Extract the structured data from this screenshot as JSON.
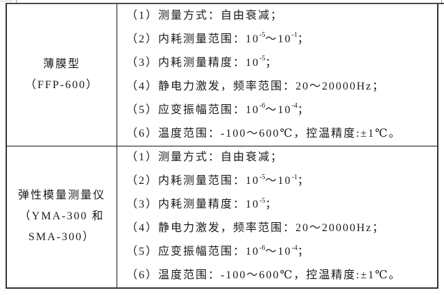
{
  "page": {
    "background": "#ffffff",
    "text_color": "#1a1a1a",
    "border_color": "#343434"
  },
  "table": {
    "rows": [
      {
        "label_lines": [
          "薄膜型",
          "（FFP-600）"
        ],
        "specs": {
          "line1": "（1）测量方式：自由衰减；",
          "line2a": "（2）内耗测量范围：10",
          "line2b": "-5",
          "line2c": "～10",
          "line2d": "-1",
          "line2e": "；",
          "line3a": "（3）内耗测量精度：10",
          "line3b": "-5",
          "line3c": "；",
          "line4": "（4）静电力激发，频率范围：20～20000Hz；",
          "line5a": "（5）应变振幅范围：10",
          "line5b": "-6",
          "line5c": "～10",
          "line5d": "-4",
          "line5e": "；",
          "line6": "（6）温度范围：-100～600℃，控温精度:±1℃。"
        }
      },
      {
        "label_lines": [
          "弹性模量测量仪",
          "（YMA-300 和",
          "SMA-300）"
        ],
        "specs": {
          "line1": "（1）测量方式：自由衰减；",
          "line2a": "（2）内耗测量范围：10",
          "line2b": "-5",
          "line2c": "～10",
          "line2d": "-1",
          "line2e": "；",
          "line3a": "（3）内耗测量精度：10",
          "line3b": "-5",
          "line3c": "；",
          "line4": "（4）静电力激发，频率范围：20～20000Hz；",
          "line5a": "（5）应变振幅范围：10",
          "line5b": "-6",
          "line5c": "～10",
          "line5d": "-4",
          "line5e": "；",
          "line6": "（6）温度范围：-100～600℃，控温精度:±1℃。"
        }
      }
    ]
  }
}
